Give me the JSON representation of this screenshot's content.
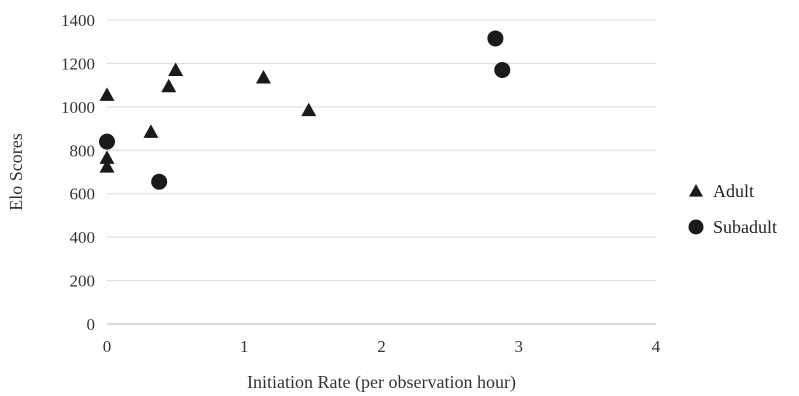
{
  "chart_data": {
    "type": "scatter",
    "title": "",
    "xlabel": "Initiation Rate (per observation hour)",
    "ylabel": "Elo Scores",
    "xlim": [
      0,
      4
    ],
    "ylim": [
      0,
      1400
    ],
    "xticks": [
      0,
      1,
      2,
      3,
      4
    ],
    "yticks": [
      0,
      200,
      400,
      600,
      800,
      1000,
      1200,
      1400
    ],
    "grid": "horizontal",
    "legend_position": "right",
    "series": [
      {
        "name": "Adult",
        "marker": "triangle",
        "color": "#1a1a1a",
        "points": [
          {
            "x": 0.0,
            "y": 1055
          },
          {
            "x": 0.0,
            "y": 765
          },
          {
            "x": 0.0,
            "y": 725
          },
          {
            "x": 0.32,
            "y": 885
          },
          {
            "x": 0.45,
            "y": 1095
          },
          {
            "x": 0.5,
            "y": 1170
          },
          {
            "x": 1.14,
            "y": 1135
          },
          {
            "x": 1.47,
            "y": 985
          }
        ]
      },
      {
        "name": "Subadult",
        "marker": "circle",
        "color": "#1a1a1a",
        "points": [
          {
            "x": 0.0,
            "y": 840
          },
          {
            "x": 0.38,
            "y": 655
          },
          {
            "x": 2.83,
            "y": 1315
          },
          {
            "x": 2.88,
            "y": 1170
          }
        ]
      }
    ]
  }
}
